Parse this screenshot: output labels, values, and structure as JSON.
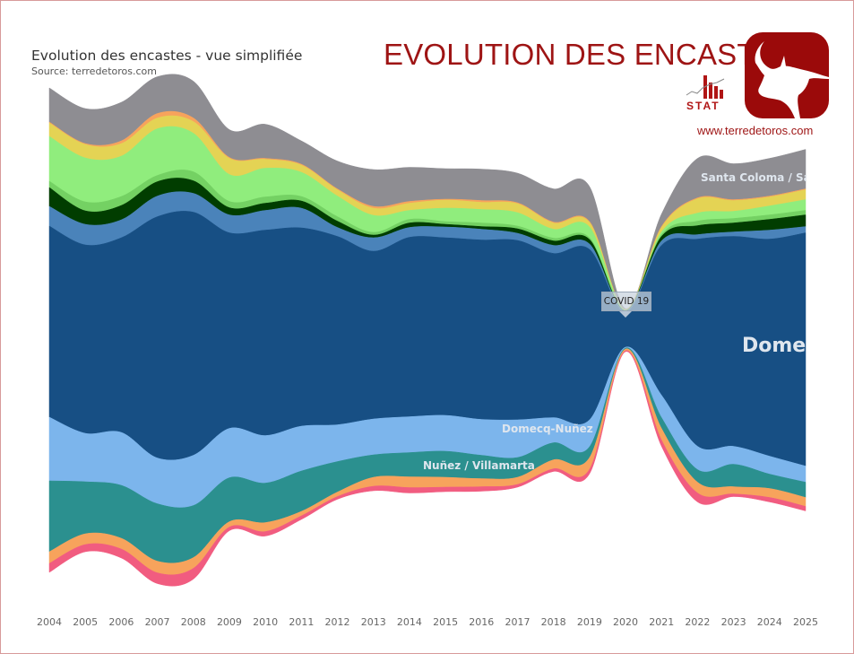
{
  "header": {
    "chart_title": "Evolution des encastes - vue simplifiée",
    "chart_source": "Source: terredetoros.com",
    "banner_title": "EVOLUTION DES ENCASTES",
    "website": "www.terredetoros.com",
    "stat_logo_text": "STAT",
    "brand_color": "#9e1414"
  },
  "chart_data": {
    "type": "area",
    "stacking": "stream",
    "title": "Evolution des encastes - vue simplifiée",
    "subtitle": "Source: terredetoros.com",
    "categories": [
      "2004",
      "2005",
      "2006",
      "2007",
      "2008",
      "2009",
      "2010",
      "2011",
      "2012",
      "2013",
      "2014",
      "2015",
      "2016",
      "2017",
      "2018",
      "2019",
      "2020",
      "2021",
      "2022",
      "2023",
      "2024",
      "2025"
    ],
    "grid": false,
    "legend": "none",
    "series": [
      {
        "name": "Santa Coloma / Saltillo",
        "color": "#8e8d92",
        "values": [
          38,
          39,
          43,
          41,
          41,
          31,
          38,
          26,
          31,
          41,
          38,
          34,
          35,
          33,
          37,
          39,
          0.5,
          14,
          44,
          40,
          42,
          44
        ]
      },
      {
        "color": "#f7a35c",
        "values": [
          1,
          1,
          3,
          5,
          4,
          1,
          1,
          1,
          1,
          2,
          2,
          1,
          2,
          1,
          1,
          1,
          0.5,
          1,
          1,
          1,
          1,
          1
        ]
      },
      {
        "color": "#e4d354",
        "values": [
          15,
          15,
          14,
          12,
          13,
          18,
          10,
          8,
          7,
          8,
          8,
          9,
          8,
          10,
          7,
          5,
          0.5,
          5,
          16,
          12,
          10,
          11
        ]
      },
      {
        "color": "#90ed7d",
        "values": [
          50,
          49,
          45,
          52,
          43,
          30,
          32,
          27,
          23,
          19,
          10,
          15,
          15,
          15,
          10,
          12,
          0.5,
          3,
          9,
          8,
          10,
          12
        ]
      },
      {
        "color": "#74d163",
        "values": [
          7,
          10,
          10,
          7,
          10,
          7,
          7,
          5,
          5,
          3,
          4,
          3,
          4,
          3,
          3,
          2,
          0.5,
          2,
          5,
          5,
          5,
          5
        ]
      },
      {
        "color": "#013d00",
        "values": [
          21,
          15,
          16,
          16,
          14,
          8,
          8,
          8,
          7,
          3,
          5,
          3,
          3,
          5,
          5,
          5,
          0.5,
          5,
          10,
          10,
          12,
          13
        ]
      },
      {
        "color": "#4a83ba",
        "values": [
          22,
          23,
          20,
          23,
          21,
          20,
          22,
          22,
          10,
          15,
          11,
          12,
          12,
          8,
          9,
          6,
          1,
          5,
          5,
          5,
          10,
          7
        ]
      },
      {
        "name": "Domecq",
        "color": "#174f84",
        "values": [
          213,
          210,
          217,
          269,
          271,
          218,
          229,
          221,
          210,
          187,
          200,
          198,
          200,
          200,
          183,
          190,
          39,
          167,
          231,
          234,
          242,
          260
        ]
      },
      {
        "name": "Domecq-Nuñez",
        "color": "#7cb5ec",
        "values": [
          71,
          54,
          59,
          51,
          56,
          55,
          53,
          50,
          41,
          40,
          40,
          40,
          40,
          42,
          28,
          30,
          1,
          25,
          26,
          20,
          20,
          18
        ]
      },
      {
        "name": "Nuñez / Villamarta",
        "color": "#2b908f",
        "values": [
          79,
          58,
          59,
          64,
          58,
          49,
          44,
          45,
          34,
          25,
          27,
          29,
          26,
          22,
          19,
          12,
          1,
          12,
          14,
          25,
          16,
          17
        ]
      },
      {
        "color": "#f7a35c",
        "values": [
          13,
          12,
          12,
          13,
          12,
          6,
          10,
          5,
          5,
          10,
          12,
          11,
          9,
          8,
          10,
          13,
          2,
          13,
          12,
          8,
          10,
          10
        ]
      },
      {
        "color": "#f15c80",
        "values": [
          10,
          8,
          10,
          12,
          12,
          4,
          5,
          4,
          3,
          5,
          6,
          5,
          5,
          3,
          3,
          5,
          1,
          7,
          10,
          3,
          5,
          5
        ]
      }
    ],
    "annotations": [
      {
        "category": "2020",
        "text": "COVID 19"
      }
    ]
  }
}
